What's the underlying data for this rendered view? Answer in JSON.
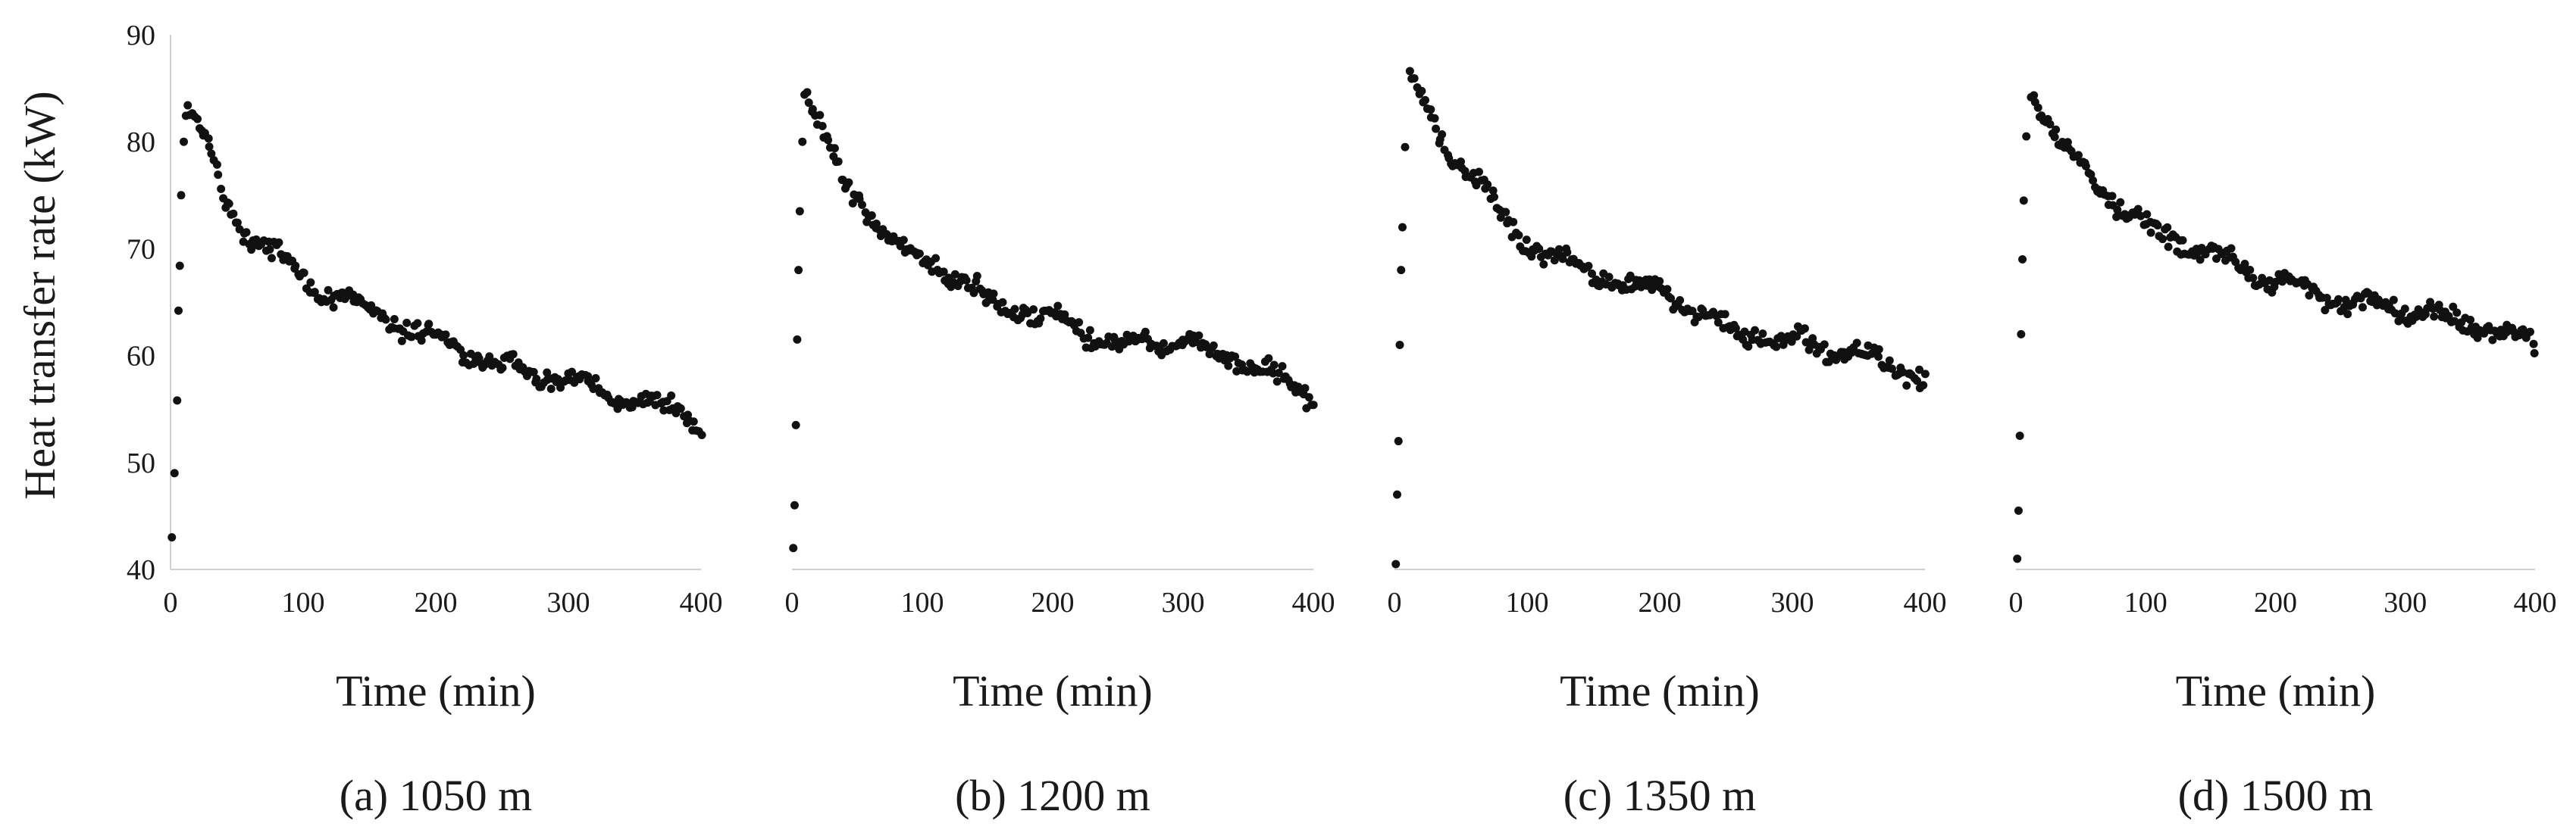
{
  "figure": {
    "ylabel": "Heat transfer rate (kW)"
  },
  "chart_data": [
    {
      "type": "scatter",
      "caption": "(a) 1050 m",
      "xlabel": "Time (min)",
      "ylabel": "Heat transfer rate (kW)",
      "xlim": [
        0,
        400
      ],
      "ylim": [
        40,
        90
      ],
      "xticks": [
        "0",
        "100",
        "200",
        "300",
        "400"
      ],
      "yticks": [
        "40",
        "50",
        "60",
        "70",
        "80",
        "90"
      ],
      "y_axis_shown": true,
      "series": [
        {
          "name": "Heat transfer rate",
          "color": "#111111",
          "start_points": [
            [
              1,
              43
            ],
            [
              3,
              49
            ],
            [
              5,
              55.8
            ],
            [
              6,
              64.2
            ],
            [
              7,
              68.4
            ],
            [
              8,
              75
            ],
            [
              10,
              80
            ]
          ],
          "trend": [
            [
              12,
              83
            ],
            [
              20,
              82
            ],
            [
              40,
              75
            ],
            [
              60,
              71
            ],
            [
              80,
              69.5
            ],
            [
              100,
              67
            ],
            [
              150,
              64
            ],
            [
              200,
              61.5
            ],
            [
              250,
              59
            ],
            [
              300,
              57.5
            ],
            [
              350,
              55.5
            ],
            [
              380,
              55
            ],
            [
              390,
              54.5
            ],
            [
              400,
              53
            ]
          ],
          "noise": 0.9,
          "n_points": 240,
          "seed": 11
        }
      ]
    },
    {
      "type": "scatter",
      "caption": "(b) 1200 m",
      "xlabel": "Time (min)",
      "ylabel": "Heat transfer rate (kW)",
      "xlim": [
        0,
        400
      ],
      "ylim": [
        40,
        90
      ],
      "xticks": [
        "0",
        "100",
        "200",
        "300",
        "400"
      ],
      "yticks": [
        "40",
        "50",
        "60",
        "70",
        "80",
        "90"
      ],
      "y_axis_shown": false,
      "series": [
        {
          "name": "Heat transfer rate",
          "color": "#111111",
          "start_points": [
            [
              1,
              42
            ],
            [
              2,
              46
            ],
            [
              3,
              53.5
            ],
            [
              4,
              61.5
            ],
            [
              5,
              68
            ],
            [
              6,
              73.5
            ],
            [
              8,
              80
            ]
          ],
          "trend": [
            [
              10,
              85
            ],
            [
              20,
              82
            ],
            [
              40,
              76
            ],
            [
              60,
              73.5
            ],
            [
              80,
              70
            ],
            [
              100,
              69
            ],
            [
              130,
              67.5
            ],
            [
              150,
              65
            ],
            [
              200,
              63.5
            ],
            [
              250,
              61
            ],
            [
              300,
              61.5
            ],
            [
              320,
              60
            ],
            [
              350,
              59.5
            ],
            [
              370,
              58
            ],
            [
              400,
              56
            ]
          ],
          "noise": 0.9,
          "n_points": 240,
          "seed": 23
        }
      ]
    },
    {
      "type": "scatter",
      "caption": "(c) 1350 m",
      "xlabel": "Time (min)",
      "ylabel": "Heat transfer rate (kW)",
      "xlim": [
        0,
        400
      ],
      "ylim": [
        40,
        90
      ],
      "xticks": [
        "0",
        "100",
        "200",
        "300",
        "400"
      ],
      "yticks": [
        "40",
        "50",
        "60",
        "70",
        "80",
        "90"
      ],
      "y_axis_shown": false,
      "series": [
        {
          "name": "Heat transfer rate",
          "color": "#111111",
          "start_points": [
            [
              1,
              40.5
            ],
            [
              2,
              47
            ],
            [
              3,
              52
            ],
            [
              4,
              61
            ],
            [
              5,
              68
            ],
            [
              6,
              72
            ],
            [
              8,
              79.5
            ]
          ],
          "trend": [
            [
              12,
              86.5
            ],
            [
              20,
              84
            ],
            [
              40,
              79
            ],
            [
              60,
              77
            ],
            [
              80,
              73
            ],
            [
              100,
              70.5
            ],
            [
              150,
              67.5
            ],
            [
              200,
              66
            ],
            [
              250,
              62.5
            ],
            [
              300,
              61.5
            ],
            [
              350,
              60
            ],
            [
              380,
              58.5
            ],
            [
              400,
              58
            ]
          ],
          "noise": 0.9,
          "n_points": 240,
          "seed": 37
        }
      ]
    },
    {
      "type": "scatter",
      "caption": "(d) 1500 m",
      "xlabel": "Time (min)",
      "ylabel": "Heat transfer rate (kW)",
      "xlim": [
        0,
        400
      ],
      "ylim": [
        40,
        90
      ],
      "xticks": [
        "0",
        "100",
        "200",
        "300",
        "400"
      ],
      "yticks": [
        "40",
        "50",
        "60",
        "70",
        "80",
        "90"
      ],
      "y_axis_shown": false,
      "series": [
        {
          "name": "Heat transfer rate",
          "color": "#111111",
          "start_points": [
            [
              1,
              41
            ],
            [
              2,
              45.5
            ],
            [
              3,
              52.5
            ],
            [
              4,
              62
            ],
            [
              5,
              69
            ],
            [
              6,
              74.5
            ],
            [
              8,
              80.5
            ]
          ],
          "trend": [
            [
              12,
              85.5
            ],
            [
              20,
              83
            ],
            [
              40,
              79
            ],
            [
              60,
              76.5
            ],
            [
              80,
              74
            ],
            [
              100,
              72
            ],
            [
              150,
              69.5
            ],
            [
              200,
              67
            ],
            [
              250,
              65
            ],
            [
              300,
              64.5
            ],
            [
              350,
              63
            ],
            [
              380,
              62
            ],
            [
              400,
              61
            ]
          ],
          "noise": 0.9,
          "n_points": 240,
          "seed": 53
        }
      ]
    }
  ]
}
